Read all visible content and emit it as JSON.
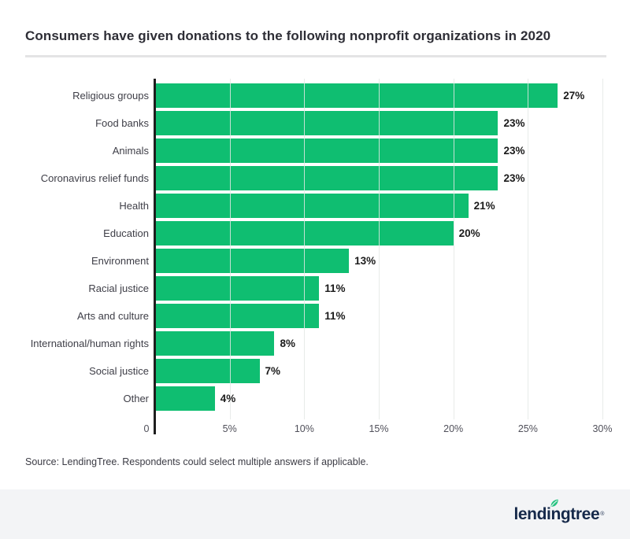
{
  "title": "Consumers have given donations to the following nonprofit organizations in 2020",
  "source_note": "Source: LendingTree. Respondents could select multiple answers if applicable.",
  "footer": {
    "logo_text": "lendingtree",
    "registered_mark": "®"
  },
  "colors": {
    "bar": "#0FBE71",
    "axis": "#1E1E1E",
    "title": "#2E2E36",
    "category": "#3E3E47",
    "value": "#1B1B1B",
    "tick": "#50505A",
    "divider": "#E4E4E5",
    "footer_bg": "#F3F4F6",
    "logo": "#16294A",
    "leaf": "#27C281",
    "page_bg": "#FFFFFF",
    "source": "#3B3B44"
  },
  "chart_data": {
    "type": "bar",
    "orientation": "horizontal",
    "title": "Consumers have given donations to the following nonprofit organizations in 2020",
    "categories": [
      "Religious groups",
      "Food banks",
      "Animals",
      "Coronavirus relief funds",
      "Health",
      "Education",
      "Environment",
      "Racial justice",
      "Arts and culture",
      "International/human rights",
      "Social justice",
      "Other"
    ],
    "values": [
      27,
      23,
      23,
      23,
      21,
      20,
      13,
      11,
      11,
      8,
      7,
      4
    ],
    "value_labels": [
      "27%",
      "23%",
      "23%",
      "23%",
      "21%",
      "20%",
      "13%",
      "11%",
      "11%",
      "8%",
      "7%",
      "4%"
    ],
    "xlabel": "",
    "ylabel": "",
    "xlim": [
      0,
      30
    ],
    "x_ticks": [
      "0",
      "5%",
      "10%",
      "15%",
      "20%",
      "25%",
      "30%"
    ],
    "grid": "vertical-only",
    "legend": "none",
    "bar_color": "#0FBE71"
  }
}
